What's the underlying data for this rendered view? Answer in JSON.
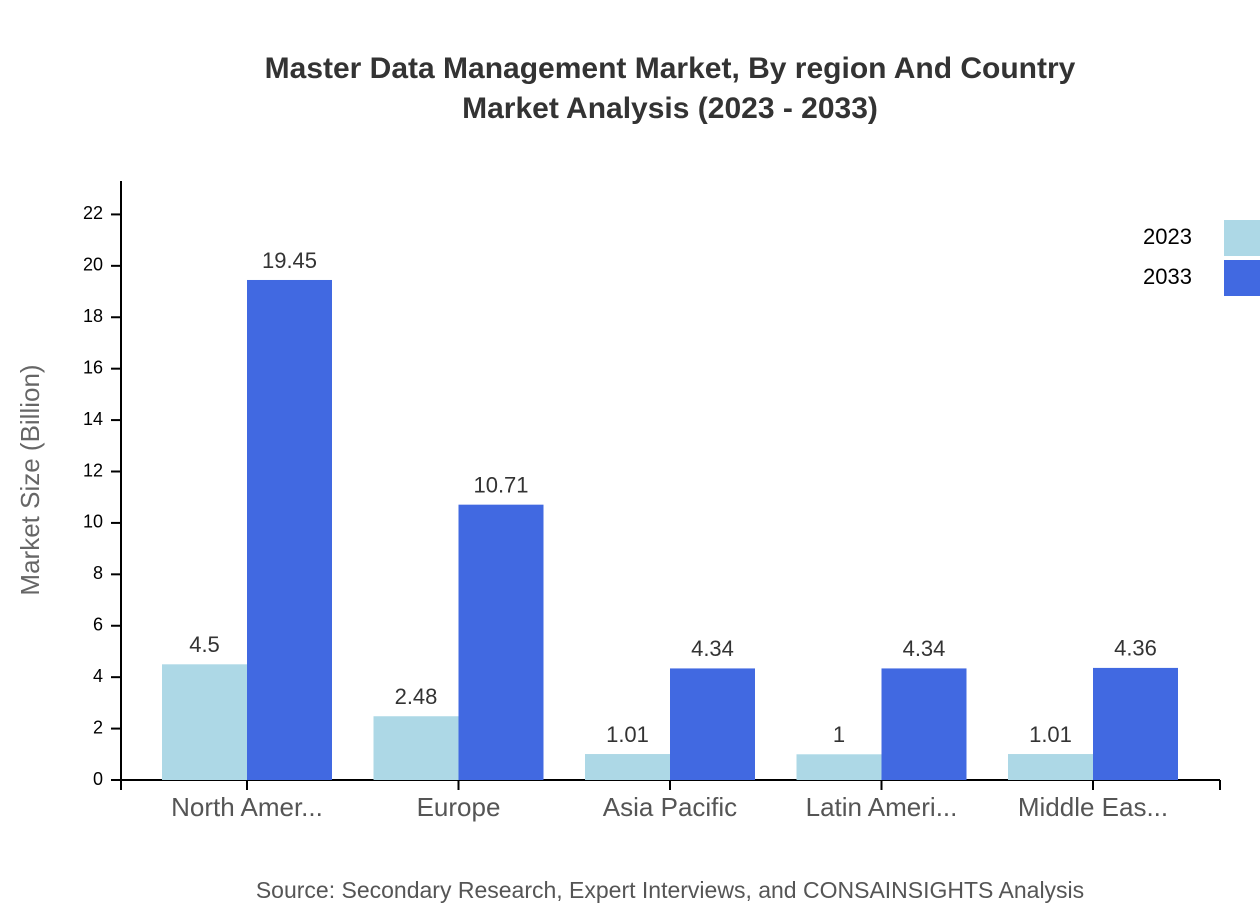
{
  "chart_data": {
    "type": "bar",
    "title": "Master Data Management Market, By region And Country",
    "subtitle": "Market Analysis (2023 - 2033)",
    "y_label": "Market Size (Billion)",
    "source": "Source: Secondary Research, Expert Interviews, and CONSAINSIGHTS Analysis",
    "categories": [
      "North Amer...",
      "Europe",
      "Asia Pacific",
      "Latin Ameri...",
      "Middle Eas..."
    ],
    "series": [
      {
        "name": "2023",
        "color": "#add8e6",
        "values": [
          4.5,
          2.48,
          1.01,
          1,
          1.01
        ]
      },
      {
        "name": "2033",
        "color": "#4169e1",
        "values": [
          19.45,
          10.71,
          4.34,
          4.34,
          4.36
        ]
      }
    ],
    "ylim": [
      0,
      23.3
    ],
    "yticks": [
      0,
      2,
      4,
      6,
      8,
      10,
      12,
      14,
      16,
      18,
      20,
      22
    ],
    "legend": "top-right"
  }
}
